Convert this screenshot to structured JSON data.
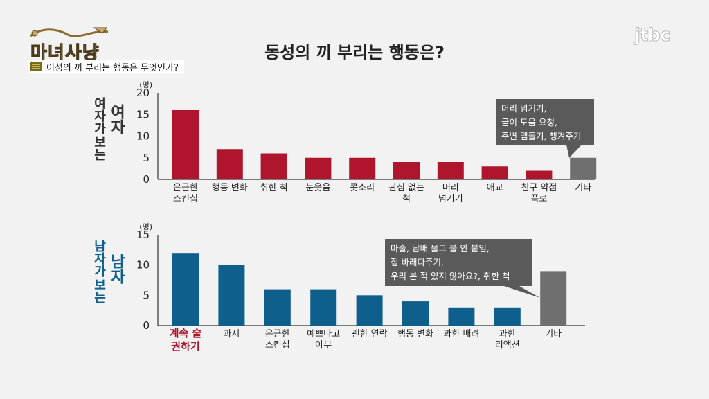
{
  "show": {
    "logo_text": "마녀사냥",
    "caption": "이성의 끼 부리는 행동은 무엇인가?"
  },
  "broadcaster": "jtbc",
  "main_title": "동성의 끼 부리는 행동은?",
  "charts": {
    "female": {
      "side_label_col1": "여자가",
      "side_label_col2": "보는",
      "side_label_big": "여자",
      "annotation_lines": [
        "머리 넘기기,",
        "굳이 도움 요청,",
        "주변 맴돌기, 챙겨주기"
      ]
    },
    "male": {
      "side_label_col1": "남자가",
      "side_label_col2": "보는",
      "side_label_big": "남자",
      "annotation_lines": [
        "마술, 담배 물고 불 안 붙임,",
        "집 바래다주기,",
        "우리 본 적 있지 않아요?, 취한 척"
      ]
    }
  },
  "chart_data": [
    {
      "type": "bar",
      "ylabel": "(명)",
      "ylim": [
        0,
        20
      ],
      "yticks": [
        0,
        5,
        10,
        15,
        20
      ],
      "color": "#b0152e",
      "other_color": "#6f6f6f",
      "categories": [
        "은근한\n스킨십",
        "행동 변화",
        "취한 척",
        "눈웃음",
        "콧소리",
        "관심 없는\n척",
        "머리\n넘기기",
        "애교",
        "친구 약점\n폭로",
        "기타"
      ],
      "values": [
        16,
        7,
        6,
        5,
        5,
        4,
        4,
        3,
        2,
        5
      ]
    },
    {
      "type": "bar",
      "ylabel": "(명)",
      "ylim": [
        0,
        15
      ],
      "yticks": [
        0,
        5,
        10,
        15
      ],
      "color": "#0f5f8c",
      "other_color": "#6f6f6f",
      "highlight_color": "#b0152e",
      "categories": [
        "계속 술\n권하기",
        "과시",
        "은근한\n스킨십",
        "예쁘다고\n아부",
        "괜한 연락",
        "행동 변화",
        "과한 배려",
        "과한\n리액션",
        "기타"
      ],
      "values": [
        12,
        10,
        6,
        6,
        5,
        4,
        3,
        3,
        9
      ]
    }
  ]
}
